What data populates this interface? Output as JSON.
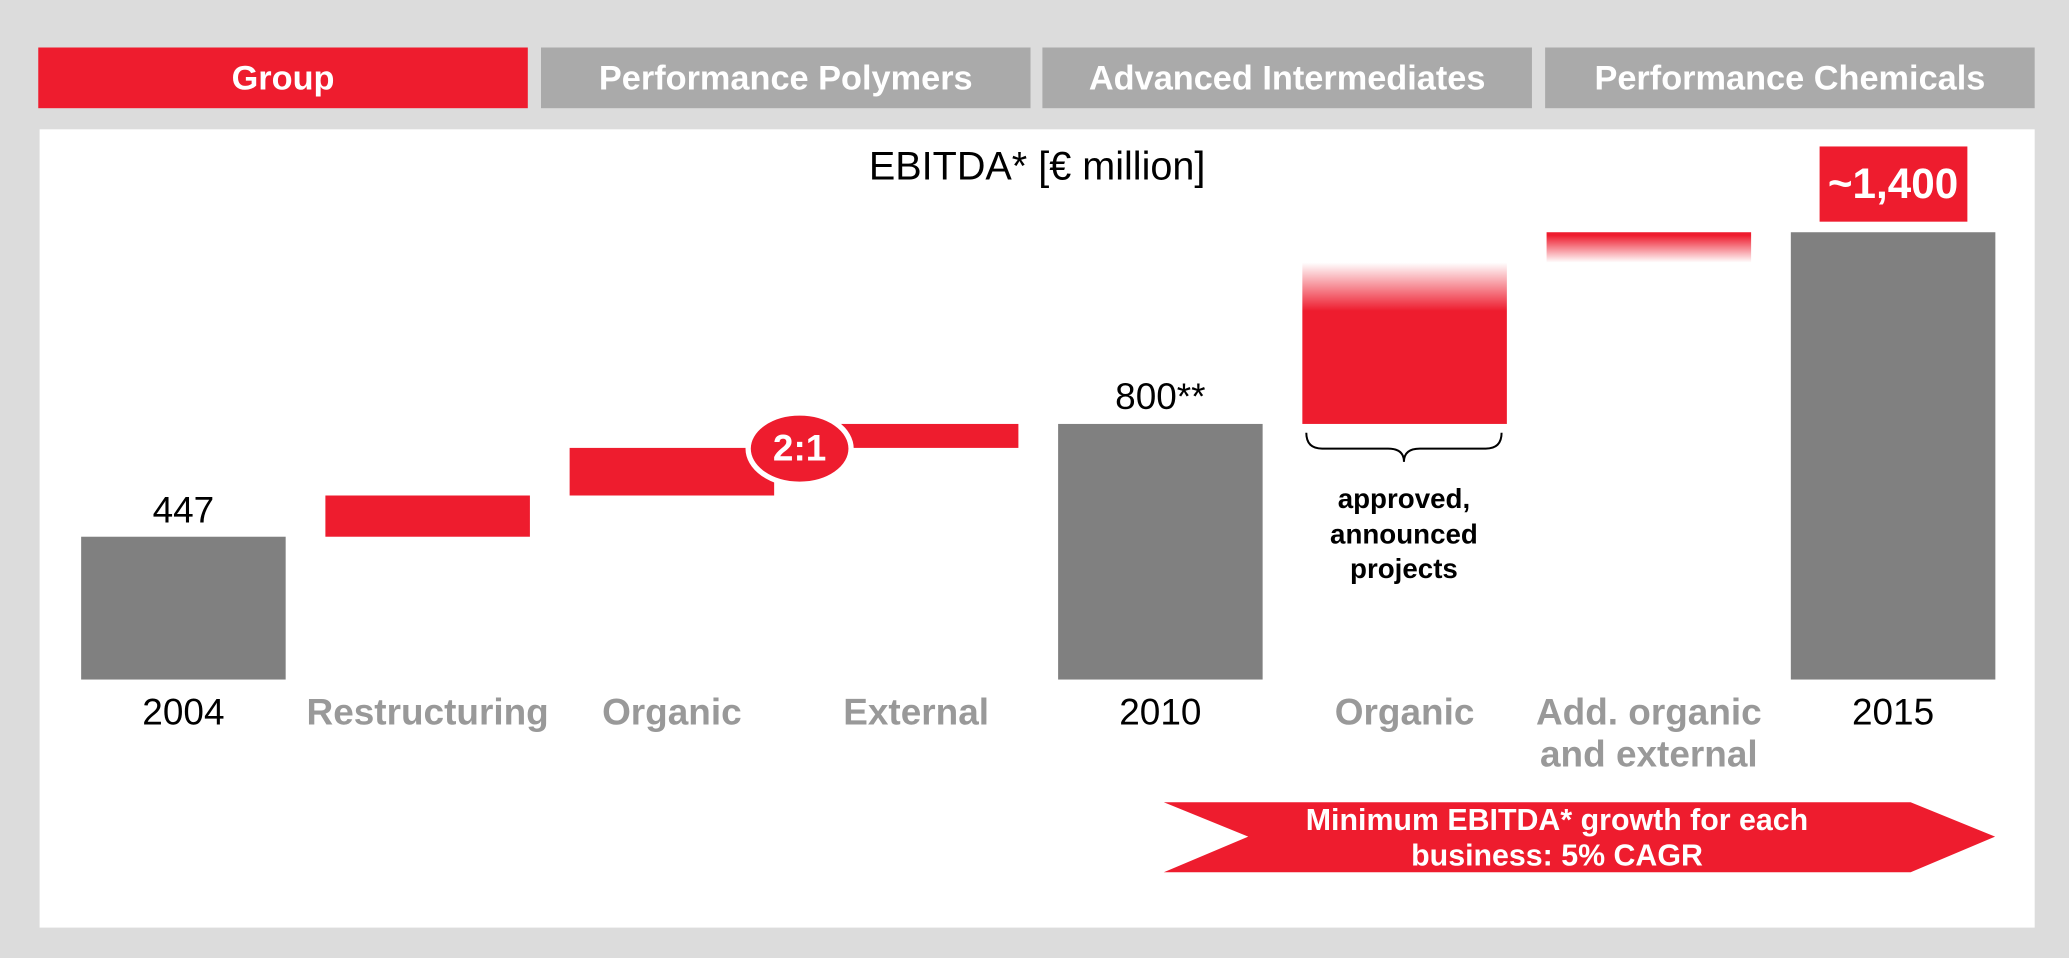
{
  "tabs": [
    "Group",
    "Performance Polymers",
    "Advanced Intermediates",
    "Performance Chemicals"
  ],
  "active_tab": 0,
  "chart_data": {
    "type": "waterfall",
    "title": "EBITDA* [€ million]",
    "categories": [
      "2004",
      "Restructuring",
      "Organic",
      "External",
      "2010",
      "Organic",
      "Add. organic and external",
      "2015"
    ],
    "measure": [
      "total",
      "relative",
      "relative",
      "relative",
      "total",
      "relative",
      "relative",
      "total"
    ],
    "values": [
      447,
      129,
      149,
      75,
      800,
      505,
      95,
      1400
    ],
    "value_labels": [
      "447",
      null,
      null,
      null,
      "800**",
      null,
      null,
      "~1,400"
    ],
    "total_color": "#808080",
    "delta_color": "#ee1c2e",
    "annotations": {
      "ratio": "2:1",
      "brace": "approved, announced projects",
      "arrow": "Minimum EBITDA* growth for each business: 5% CAGR"
    }
  }
}
